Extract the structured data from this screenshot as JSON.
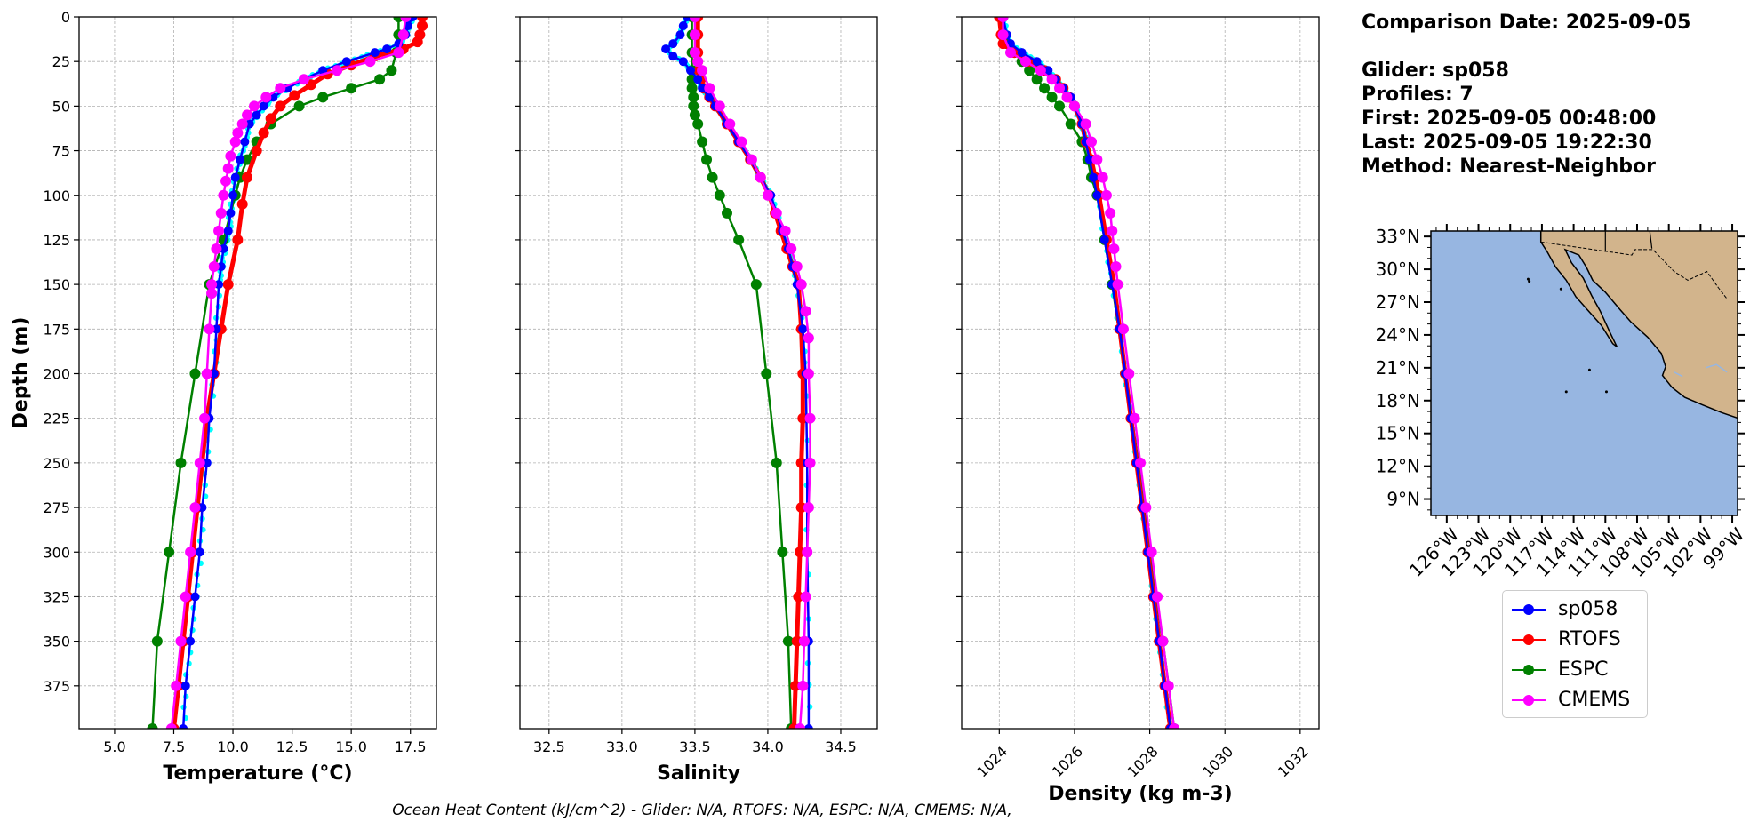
{
  "info": {
    "comparison_date": "Comparison Date: 2025-09-05",
    "glider": "Glider: sp058",
    "profiles": "Profiles: 7",
    "first": "First: 2025-09-05 00:48:00",
    "last": "Last: 2025-09-05 19:22:30",
    "method": "Method: Nearest-Neighbor"
  },
  "footer": "Ocean Heat Content (kJ/cm^2) - Glider: N/A,  RTOFS: N/A,  ESPC: N/A,  CMEMS: N/A,",
  "legend": [
    {
      "name": "sp058",
      "color": "#0000ff"
    },
    {
      "name": "RTOFS",
      "color": "#ff0000"
    },
    {
      "name": "ESPC",
      "color": "#008000"
    },
    {
      "name": "CMEMS",
      "color": "#ff00ff"
    }
  ],
  "colors": {
    "raw": "#00ffff",
    "ocean": "#97b6e1",
    "land": "#d2b48c"
  },
  "chart_data": [
    {
      "type": "line",
      "xlabel": "Temperature (°C)",
      "ylabel": "Depth (m)",
      "xlim": [
        3.5,
        18.6
      ],
      "ylim": [
        399,
        0
      ],
      "xticks": [
        "5.0",
        "7.5",
        "10.0",
        "12.5",
        "15.0",
        "17.5"
      ],
      "yticks": [
        "0",
        "25",
        "50",
        "75",
        "100",
        "125",
        "150",
        "175",
        "200",
        "225",
        "250",
        "275",
        "300",
        "325",
        "350",
        "375"
      ],
      "grid": true,
      "series": [
        {
          "name": "sp058",
          "depth": [
            0,
            5,
            10,
            15,
            18,
            20,
            25,
            30,
            35,
            40,
            45,
            50,
            55,
            60,
            70,
            80,
            90,
            100,
            110,
            120,
            130,
            140,
            150,
            175,
            200,
            225,
            250,
            275,
            300,
            325,
            350,
            375,
            399
          ],
          "values": [
            17.6,
            17.4,
            17.3,
            17.0,
            16.5,
            16.0,
            14.8,
            13.8,
            13.0,
            12.3,
            11.7,
            11.3,
            11.0,
            10.7,
            10.5,
            10.3,
            10.1,
            10.0,
            9.9,
            9.8,
            9.6,
            9.5,
            9.4,
            9.3,
            9.2,
            9.0,
            8.9,
            8.7,
            8.6,
            8.4,
            8.2,
            8.0,
            7.9
          ]
        },
        {
          "name": "RTOFS",
          "depth": [
            0,
            5,
            10,
            14,
            18,
            22,
            27,
            32,
            38,
            44,
            50,
            57,
            65,
            75,
            90,
            105,
            125,
            150,
            175,
            200,
            225,
            250,
            275,
            300,
            325,
            350,
            375,
            399
          ],
          "values": [
            18.0,
            18.0,
            17.9,
            17.8,
            17.2,
            16.0,
            15.0,
            14.0,
            13.3,
            12.6,
            12.0,
            11.6,
            11.3,
            11.0,
            10.6,
            10.4,
            10.2,
            9.8,
            9.5,
            9.2,
            8.9,
            8.7,
            8.5,
            8.3,
            8.1,
            7.9,
            7.7,
            7.5
          ]
        },
        {
          "name": "ESPC",
          "depth": [
            0,
            10,
            20,
            30,
            35,
            40,
            45,
            50,
            60,
            70,
            80,
            90,
            100,
            125,
            150,
            200,
            250,
            300,
            350,
            399
          ],
          "values": [
            17.0,
            17.0,
            16.9,
            16.7,
            16.2,
            15.0,
            13.8,
            12.8,
            11.6,
            11.0,
            10.6,
            10.3,
            10.1,
            9.6,
            9.0,
            8.4,
            7.8,
            7.3,
            6.8,
            6.6
          ]
        },
        {
          "name": "CMEMS",
          "depth": [
            0,
            10,
            20,
            25,
            30,
            35,
            40,
            45,
            50,
            55,
            60,
            65,
            70,
            78,
            85,
            92,
            100,
            110,
            120,
            130,
            140,
            150,
            155,
            175,
            200,
            225,
            250,
            275,
            300,
            325,
            350,
            375,
            399
          ],
          "values": [
            17.3,
            17.2,
            17.0,
            15.8,
            14.4,
            13.0,
            12.0,
            11.4,
            10.9,
            10.6,
            10.4,
            10.2,
            10.1,
            9.9,
            9.8,
            9.7,
            9.6,
            9.5,
            9.4,
            9.3,
            9.2,
            9.1,
            9.1,
            9.0,
            8.9,
            8.8,
            8.6,
            8.4,
            8.2,
            8.0,
            7.8,
            7.6,
            7.4
          ]
        }
      ]
    },
    {
      "type": "line",
      "xlabel": "Salinity",
      "xlim": [
        32.3,
        34.75
      ],
      "ylim": [
        399,
        0
      ],
      "xticks": [
        "32.5",
        "33.0",
        "33.5",
        "34.0",
        "34.5"
      ],
      "grid": true,
      "series": [
        {
          "name": "sp058",
          "depth": [
            0,
            5,
            10,
            15,
            18,
            22,
            25,
            30,
            35,
            40,
            45,
            50,
            60,
            70,
            80,
            90,
            100,
            110,
            120,
            130,
            140,
            150,
            175,
            200,
            250,
            300,
            350,
            399
          ],
          "values": [
            33.45,
            33.42,
            33.4,
            33.35,
            33.3,
            33.35,
            33.42,
            33.47,
            33.52,
            33.55,
            33.6,
            33.64,
            33.72,
            33.8,
            33.88,
            33.95,
            34.02,
            34.06,
            34.1,
            34.14,
            34.17,
            34.2,
            34.24,
            34.26,
            34.27,
            34.27,
            34.28,
            34.28
          ]
        },
        {
          "name": "RTOFS",
          "depth": [
            0,
            10,
            20,
            25,
            30,
            35,
            40,
            45,
            50,
            60,
            70,
            80,
            90,
            100,
            110,
            120,
            130,
            140,
            150,
            175,
            200,
            225,
            250,
            275,
            300,
            325,
            350,
            375,
            399
          ],
          "values": [
            33.52,
            33.52,
            33.52,
            33.52,
            33.53,
            33.54,
            33.56,
            33.6,
            33.64,
            33.72,
            33.8,
            33.88,
            33.95,
            34.01,
            34.05,
            34.09,
            34.13,
            34.17,
            34.21,
            34.23,
            34.24,
            34.24,
            34.23,
            34.23,
            34.22,
            34.21,
            34.2,
            34.19,
            34.18
          ]
        },
        {
          "name": "ESPC",
          "depth": [
            0,
            10,
            20,
            30,
            35,
            40,
            45,
            50,
            55,
            60,
            70,
            80,
            90,
            100,
            110,
            125,
            150,
            200,
            250,
            300,
            350,
            399
          ],
          "values": [
            33.48,
            33.48,
            33.48,
            33.48,
            33.48,
            33.48,
            33.49,
            33.49,
            33.5,
            33.52,
            33.55,
            33.58,
            33.62,
            33.67,
            33.72,
            33.8,
            33.92,
            33.99,
            34.06,
            34.1,
            34.14,
            34.16
          ]
        },
        {
          "name": "CMEMS",
          "depth": [
            0,
            10,
            20,
            25,
            30,
            40,
            50,
            60,
            70,
            80,
            90,
            100,
            110,
            120,
            130,
            140,
            150,
            165,
            180,
            200,
            225,
            250,
            275,
            300,
            325,
            350,
            375,
            399
          ],
          "values": [
            33.5,
            33.5,
            33.5,
            33.52,
            33.55,
            33.6,
            33.67,
            33.74,
            33.82,
            33.89,
            33.95,
            34.0,
            34.06,
            34.12,
            34.16,
            34.2,
            34.23,
            34.26,
            34.28,
            34.28,
            34.29,
            34.29,
            34.28,
            34.27,
            34.26,
            34.25,
            34.24,
            34.22
          ]
        }
      ]
    },
    {
      "type": "line",
      "xlabel": "Density (kg m-3)",
      "xlim": [
        1023.0,
        1032.5
      ],
      "ylim": [
        399,
        0
      ],
      "xticks": [
        "1024",
        "1026",
        "1028",
        "1030",
        "1032"
      ],
      "grid": true,
      "series": [
        {
          "name": "sp058",
          "depth": [
            0,
            10,
            15,
            20,
            25,
            30,
            35,
            40,
            45,
            50,
            60,
            70,
            80,
            90,
            100,
            125,
            150,
            175,
            200,
            225,
            250,
            275,
            300,
            325,
            350,
            375,
            399
          ],
          "values": [
            1024.1,
            1024.2,
            1024.3,
            1024.6,
            1025.0,
            1025.3,
            1025.5,
            1025.7,
            1025.9,
            1026.0,
            1026.2,
            1026.3,
            1026.4,
            1026.5,
            1026.6,
            1026.8,
            1027.0,
            1027.2,
            1027.35,
            1027.5,
            1027.65,
            1027.8,
            1027.95,
            1028.1,
            1028.25,
            1028.4,
            1028.55
          ]
        },
        {
          "name": "RTOFS",
          "depth": [
            0,
            10,
            15,
            20,
            25,
            30,
            35,
            40,
            45,
            50,
            60,
            70,
            80,
            90,
            100,
            125,
            150,
            175,
            200,
            225,
            250,
            275,
            300,
            325,
            350,
            375,
            399
          ],
          "values": [
            1024.0,
            1024.05,
            1024.1,
            1024.4,
            1024.8,
            1025.2,
            1025.5,
            1025.7,
            1025.85,
            1026.0,
            1026.2,
            1026.3,
            1026.45,
            1026.55,
            1026.65,
            1026.85,
            1027.05,
            1027.2,
            1027.35,
            1027.5,
            1027.65,
            1027.8,
            1027.95,
            1028.1,
            1028.25,
            1028.4,
            1028.55
          ]
        },
        {
          "name": "ESPC",
          "depth": [
            0,
            10,
            15,
            20,
            25,
            30,
            35,
            40,
            45,
            50,
            60,
            70,
            80,
            90,
            100,
            125,
            150,
            200,
            250,
            300,
            350,
            399
          ],
          "values": [
            1024.1,
            1024.1,
            1024.2,
            1024.4,
            1024.6,
            1024.8,
            1025.0,
            1025.2,
            1025.4,
            1025.6,
            1025.9,
            1026.2,
            1026.35,
            1026.45,
            1026.6,
            1026.8,
            1027.0,
            1027.35,
            1027.7,
            1028.0,
            1028.35,
            1028.65
          ]
        },
        {
          "name": "CMEMS",
          "depth": [
            0,
            10,
            20,
            25,
            30,
            35,
            40,
            45,
            50,
            60,
            70,
            80,
            90,
            100,
            110,
            120,
            130,
            140,
            150,
            175,
            200,
            225,
            250,
            275,
            300,
            325,
            350,
            375,
            399
          ],
          "values": [
            1024.1,
            1024.1,
            1024.3,
            1024.7,
            1025.1,
            1025.4,
            1025.6,
            1025.8,
            1026.0,
            1026.3,
            1026.45,
            1026.6,
            1026.75,
            1026.85,
            1026.95,
            1027.0,
            1027.05,
            1027.1,
            1027.15,
            1027.3,
            1027.45,
            1027.6,
            1027.75,
            1027.9,
            1028.05,
            1028.2,
            1028.35,
            1028.5,
            1028.65
          ]
        }
      ]
    },
    {
      "type": "map",
      "lon_ticks": [
        "126°W",
        "123°W",
        "120°W",
        "117°W",
        "114°W",
        "111°W",
        "108°W",
        "105°W",
        "102°W",
        "99°W"
      ],
      "lat_ticks": [
        "33°N",
        "30°N",
        "27°N",
        "24°N",
        "21°N",
        "18°N",
        "15°N",
        "12°N",
        "9°N"
      ],
      "lon_range": [
        -127.5,
        -98.5
      ],
      "lat_range": [
        7.5,
        33.5
      ]
    }
  ]
}
